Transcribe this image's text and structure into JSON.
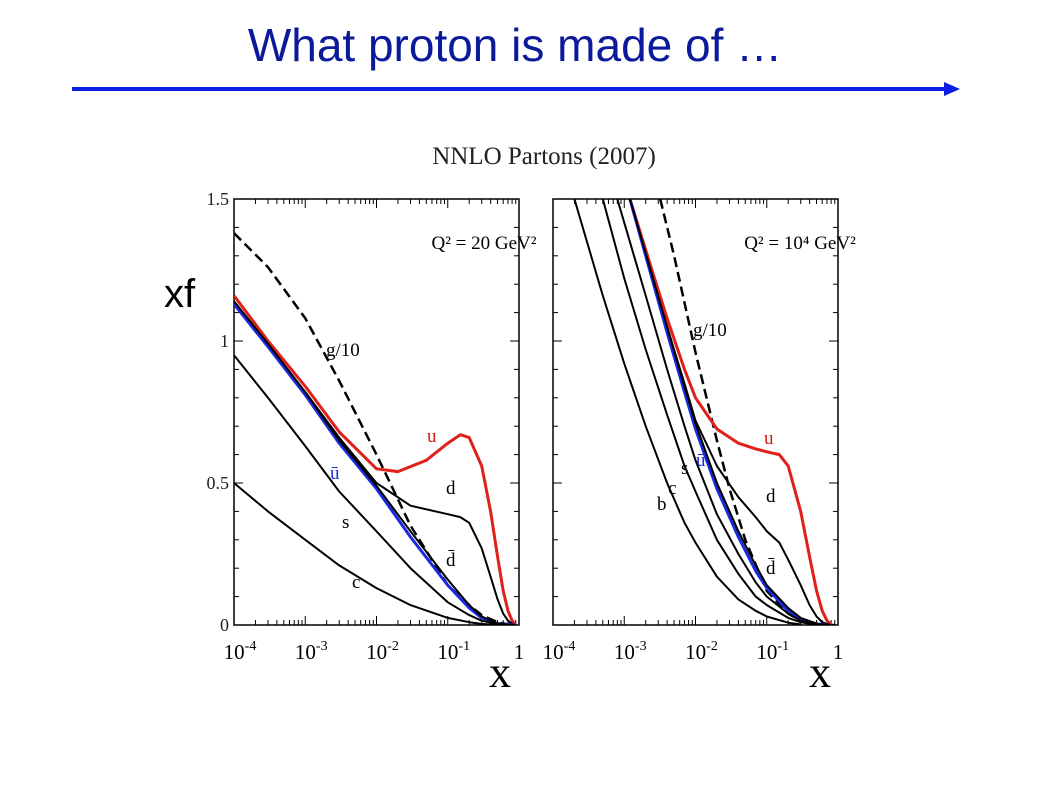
{
  "slide": {
    "title": "What proton is made of …",
    "arrow_color": "#0b1de0",
    "title_color": "#0a1a9a"
  },
  "figure": {
    "title": "NNLO Partons (2007)",
    "ylabel": "xf"
  },
  "chart_data": [
    {
      "type": "line",
      "panel": "left",
      "annotation": "Q² = 20 GeV²",
      "xlabel": "x",
      "ylabel": "xf",
      "xscale": "log",
      "xlim": [
        0.0001,
        1
      ],
      "ylim": [
        0,
        1.5
      ],
      "xticks": [
        "10⁻⁴",
        "10⁻³",
        "10⁻²",
        "10⁻¹",
        "1"
      ],
      "yticks": [
        "0",
        "0.5",
        "1",
        "1.5"
      ],
      "grid": false,
      "series": [
        {
          "name": "g/10",
          "color": "#000000",
          "dash": true,
          "x": [
            0.0001,
            0.0003,
            0.001,
            0.003,
            0.01,
            0.03,
            0.1,
            0.2,
            0.3,
            0.5,
            0.7,
            0.9
          ],
          "y": [
            1.38,
            1.26,
            1.08,
            0.86,
            0.6,
            0.35,
            0.14,
            0.07,
            0.035,
            0.01,
            0.002,
            0
          ]
        },
        {
          "name": "u",
          "color": "#e0201a",
          "x": [
            0.0001,
            0.0003,
            0.001,
            0.003,
            0.01,
            0.02,
            0.05,
            0.1,
            0.15,
            0.2,
            0.3,
            0.4,
            0.5,
            0.6,
            0.7,
            0.8,
            0.9
          ],
          "y": [
            1.16,
            1.0,
            0.84,
            0.68,
            0.55,
            0.54,
            0.58,
            0.64,
            0.67,
            0.66,
            0.56,
            0.4,
            0.24,
            0.12,
            0.05,
            0.015,
            0
          ]
        },
        {
          "name": "d",
          "color": "#000000",
          "x": [
            0.0001,
            0.0003,
            0.001,
            0.003,
            0.01,
            0.03,
            0.1,
            0.15,
            0.2,
            0.3,
            0.4,
            0.5,
            0.6,
            0.7,
            0.8,
            0.9
          ],
          "y": [
            1.14,
            0.98,
            0.82,
            0.66,
            0.5,
            0.42,
            0.39,
            0.38,
            0.36,
            0.27,
            0.17,
            0.09,
            0.04,
            0.015,
            0.004,
            0
          ]
        },
        {
          "name": "ū",
          "color": "#1a2ae0",
          "x": [
            0.0001,
            0.0003,
            0.001,
            0.003,
            0.01,
            0.03,
            0.1,
            0.2,
            0.3,
            0.5,
            0.7,
            0.9
          ],
          "y": [
            1.13,
            0.98,
            0.81,
            0.64,
            0.48,
            0.31,
            0.14,
            0.06,
            0.025,
            0.005,
            0.001,
            0
          ]
        },
        {
          "name": "d̄",
          "color": "#000000",
          "x": [
            0.0001,
            0.0003,
            0.001,
            0.003,
            0.01,
            0.03,
            0.1,
            0.2,
            0.3,
            0.5,
            0.7,
            0.9
          ],
          "y": [
            1.14,
            0.99,
            0.82,
            0.65,
            0.49,
            0.33,
            0.16,
            0.07,
            0.03,
            0.006,
            0.001,
            0
          ]
        },
        {
          "name": "s",
          "color": "#000000",
          "x": [
            0.0001,
            0.0003,
            0.001,
            0.003,
            0.01,
            0.03,
            0.1,
            0.2,
            0.3,
            0.5,
            0.7,
            0.9
          ],
          "y": [
            0.95,
            0.8,
            0.63,
            0.47,
            0.33,
            0.2,
            0.08,
            0.035,
            0.015,
            0.003,
            0,
            0
          ]
        },
        {
          "name": "c",
          "color": "#000000",
          "x": [
            0.0001,
            0.0003,
            0.001,
            0.003,
            0.01,
            0.03,
            0.1,
            0.2,
            0.3,
            0.5,
            0.7,
            0.9
          ],
          "y": [
            0.5,
            0.4,
            0.3,
            0.21,
            0.13,
            0.07,
            0.025,
            0.01,
            0.004,
            0,
            0,
            0
          ]
        }
      ]
    },
    {
      "type": "line",
      "panel": "right",
      "annotation": "Q² = 10⁴ GeV²",
      "xlabel": "x",
      "xscale": "log",
      "xlim": [
        0.0001,
        1
      ],
      "ylim": [
        0,
        1.5
      ],
      "xticks": [
        "10⁻⁴",
        "10⁻³",
        "10⁻²",
        "10⁻¹",
        "1"
      ],
      "grid": false,
      "series": [
        {
          "name": "g/10",
          "color": "#000000",
          "dash": true,
          "x": [
            0.0032,
            0.005,
            0.01,
            0.02,
            0.03,
            0.05,
            0.1,
            0.2,
            0.3,
            0.5,
            0.7,
            0.9
          ],
          "y": [
            1.5,
            1.3,
            0.96,
            0.65,
            0.48,
            0.3,
            0.12,
            0.04,
            0.015,
            0.003,
            0,
            0
          ]
        },
        {
          "name": "u",
          "color": "#e0201a",
          "x": [
            0.0012,
            0.002,
            0.004,
            0.007,
            0.01,
            0.02,
            0.04,
            0.07,
            0.1,
            0.15,
            0.2,
            0.3,
            0.4,
            0.5,
            0.6,
            0.7,
            0.8
          ],
          "y": [
            1.5,
            1.32,
            1.08,
            0.9,
            0.8,
            0.69,
            0.64,
            0.62,
            0.61,
            0.6,
            0.56,
            0.4,
            0.24,
            0.12,
            0.05,
            0.015,
            0
          ]
        },
        {
          "name": "d",
          "color": "#000000",
          "x": [
            0.0012,
            0.002,
            0.004,
            0.007,
            0.01,
            0.02,
            0.04,
            0.07,
            0.1,
            0.15,
            0.2,
            0.3,
            0.4,
            0.5,
            0.6,
            0.7,
            0.8
          ],
          "y": [
            1.5,
            1.3,
            1.05,
            0.85,
            0.72,
            0.56,
            0.45,
            0.38,
            0.33,
            0.29,
            0.23,
            0.14,
            0.07,
            0.03,
            0.01,
            0.003,
            0
          ]
        },
        {
          "name": "ū",
          "color": "#1a2ae0",
          "x": [
            0.0012,
            0.002,
            0.004,
            0.007,
            0.01,
            0.02,
            0.04,
            0.07,
            0.1,
            0.2,
            0.3,
            0.5,
            0.7
          ],
          "y": [
            1.5,
            1.3,
            1.03,
            0.82,
            0.69,
            0.48,
            0.31,
            0.19,
            0.13,
            0.05,
            0.02,
            0.004,
            0
          ]
        },
        {
          "name": "d̄",
          "color": "#000000",
          "x": [
            0.0012,
            0.002,
            0.004,
            0.007,
            0.01,
            0.02,
            0.04,
            0.07,
            0.1,
            0.2,
            0.3,
            0.5,
            0.7
          ],
          "y": [
            1.5,
            1.31,
            1.05,
            0.84,
            0.71,
            0.5,
            0.33,
            0.21,
            0.14,
            0.06,
            0.025,
            0.005,
            0
          ]
        },
        {
          "name": "s",
          "color": "#000000",
          "x": [
            0.0008,
            0.002,
            0.004,
            0.007,
            0.01,
            0.02,
            0.04,
            0.07,
            0.1,
            0.2,
            0.3,
            0.5,
            0.7
          ],
          "y": [
            1.5,
            1.16,
            0.9,
            0.7,
            0.58,
            0.39,
            0.25,
            0.15,
            0.1,
            0.04,
            0.015,
            0.003,
            0
          ]
        },
        {
          "name": "c",
          "color": "#000000",
          "x": [
            0.0005,
            0.001,
            0.002,
            0.004,
            0.007,
            0.01,
            0.02,
            0.04,
            0.07,
            0.1,
            0.2,
            0.3,
            0.5
          ],
          "y": [
            1.5,
            1.22,
            0.97,
            0.74,
            0.56,
            0.47,
            0.3,
            0.18,
            0.1,
            0.07,
            0.025,
            0.01,
            0
          ]
        },
        {
          "name": "b",
          "color": "#000000",
          "x": [
            0.0002,
            0.0005,
            0.001,
            0.002,
            0.004,
            0.007,
            0.01,
            0.02,
            0.04,
            0.07,
            0.1,
            0.2,
            0.3
          ],
          "y": [
            1.5,
            1.16,
            0.92,
            0.7,
            0.5,
            0.36,
            0.29,
            0.17,
            0.09,
            0.05,
            0.03,
            0.008,
            0.002
          ]
        }
      ]
    }
  ]
}
